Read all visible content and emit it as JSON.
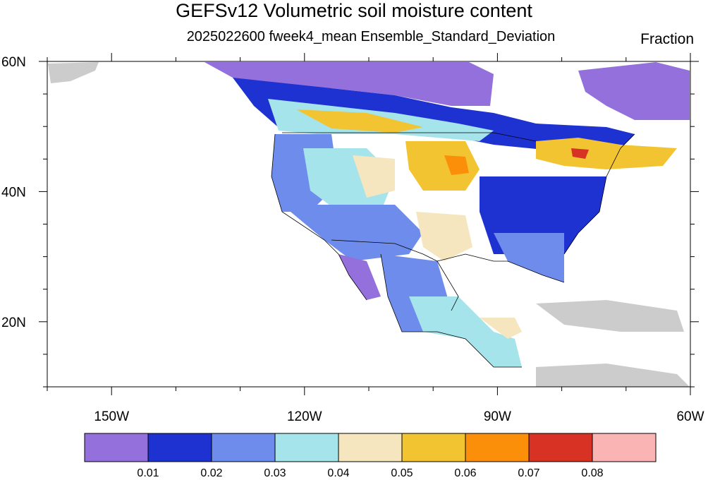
{
  "title": "GEFSv12 Volumetric soil moisture content",
  "subtitle": "2025022600 fweek4_mean Ensemble_Standard_Deviation",
  "units": "Fraction",
  "map": {
    "projection": "cylindrical-equidistant",
    "lon_range": [
      -160,
      -60
    ],
    "lat_range": [
      10,
      60
    ],
    "x_ticks": [
      {
        "lon": -150,
        "label": "150W"
      },
      {
        "lon": -120,
        "label": "120W"
      },
      {
        "lon": -90,
        "label": "90W"
      },
      {
        "lon": -60,
        "label": "60W"
      }
    ],
    "y_ticks": [
      {
        "lat": 60,
        "label": "60N"
      },
      {
        "lat": 40,
        "label": "40N"
      },
      {
        "lat": 20,
        "label": "20N"
      }
    ]
  },
  "colorbar": {
    "colors": [
      "#9370db",
      "#1e32d2",
      "#6e8cec",
      "#a6e4ec",
      "#f5e6c0",
      "#f2c432",
      "#fb8f0a",
      "#d83224",
      "#fbb4b4"
    ],
    "labels": [
      "0.01",
      "0.02",
      "0.03",
      "0.04",
      "0.05",
      "0.06",
      "0.07",
      "0.08"
    ]
  },
  "colors": {
    "land_no_data": "#cccccc",
    "ocean": "#ffffff",
    "outline": "#000000"
  }
}
